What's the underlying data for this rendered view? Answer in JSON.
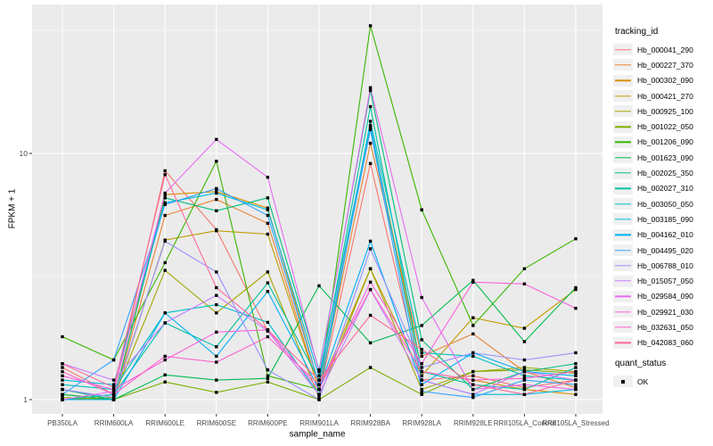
{
  "chart_data": {
    "type": "line",
    "title": "",
    "xlabel": "sample_name",
    "ylabel": "FPKM + 1",
    "y_scale": "log10",
    "y_ticks": [
      1,
      10
    ],
    "y_minor_gridlines": [
      3.162,
      31.62
    ],
    "ylim": [
      0.92,
      40
    ],
    "grid": "on",
    "legend_position": "right",
    "panel_bg": "#ebebeb",
    "grid_color": "#ffffff",
    "tick_color": "#333333",
    "axis_text_color": "#4d4d4d",
    "point_shape": "filled-square",
    "point_color": "#000000",
    "categories": [
      "PB350LA",
      "RRIM600LA",
      "RRIM600LE",
      "RRIM600SE",
      "RRIM600PE",
      "RRIM901LA",
      "RRIM928BA",
      "RRIM928LA",
      "RRIM928LE",
      "RRII105LA_Control",
      "RRII105LA_Stressed"
    ],
    "series": [
      {
        "name": "Hb_000041_290",
        "color": "#F8766D",
        "values": [
          1.35,
          1.05,
          8.5,
          4.9,
          1.9,
          1.05,
          9.1,
          1.2,
          1.25,
          1.12,
          1.2
        ]
      },
      {
        "name": "Hb_000227_370",
        "color": "#EA8331",
        "values": [
          1.0,
          1.0,
          5.6,
          6.5,
          5.2,
          1.1,
          11.0,
          1.5,
          1.85,
          1.3,
          1.12
        ]
      },
      {
        "name": "Hb_000302_090",
        "color": "#D89000",
        "values": [
          1.1,
          1.0,
          6.8,
          7.0,
          6.0,
          1.15,
          12.8,
          1.3,
          1.2,
          1.1,
          1.05
        ]
      },
      {
        "name": "Hb_000421_270",
        "color": "#C09B00",
        "values": [
          1.05,
          1.0,
          4.45,
          4.85,
          4.7,
          1.1,
          3.4,
          1.25,
          2.15,
          1.95,
          2.8
        ]
      },
      {
        "name": "Hb_000925_100",
        "color": "#A3A500",
        "values": [
          1.0,
          1.02,
          3.35,
          2.25,
          3.3,
          1.02,
          3.4,
          1.1,
          1.3,
          1.35,
          1.3
        ]
      },
      {
        "name": "Hb_001022_050",
        "color": "#7CAE00",
        "values": [
          1.02,
          1.0,
          1.18,
          1.07,
          1.18,
          1.0,
          1.35,
          1.05,
          1.3,
          1.32,
          1.28
        ]
      },
      {
        "name": "Hb_001206_090",
        "color": "#39B600",
        "values": [
          1.8,
          1.45,
          3.6,
          9.3,
          1.25,
          1.1,
          33.0,
          5.9,
          2.0,
          3.4,
          4.5
        ]
      },
      {
        "name": "Hb_001623_090",
        "color": "#00BB4E",
        "values": [
          1.05,
          1.0,
          1.26,
          1.2,
          1.22,
          2.9,
          1.7,
          2.0,
          3.05,
          1.72,
          2.85
        ]
      },
      {
        "name": "Hb_002025_350",
        "color": "#00BF7D",
        "values": [
          1.1,
          1.0,
          6.6,
          5.85,
          6.6,
          1.32,
          18.0,
          1.75,
          1.1,
          1.3,
          1.4
        ]
      },
      {
        "name": "Hb_002027_310",
        "color": "#00C1A3",
        "values": [
          1.0,
          1.05,
          2.05,
          1.64,
          2.98,
          1.2,
          15.5,
          1.3,
          1.15,
          1.1,
          1.35
        ]
      },
      {
        "name": "Hb_003050_050",
        "color": "#00BFC4",
        "values": [
          1.15,
          1.1,
          2.25,
          2.43,
          2.06,
          1.05,
          13.5,
          1.55,
          1.5,
          1.25,
          1.2
        ]
      },
      {
        "name": "Hb_003185_090",
        "color": "#00BAE0",
        "values": [
          1.2,
          1.15,
          6.3,
          6.9,
          5.9,
          1.25,
          13.0,
          1.2,
          1.05,
          1.05,
          1.1
        ]
      },
      {
        "name": "Hb_004162_010",
        "color": "#00B0F6",
        "values": [
          1.0,
          1.0,
          2.25,
          1.5,
          2.75,
          1.1,
          4.4,
          1.15,
          1.55,
          1.3,
          1.25
        ]
      },
      {
        "name": "Hb_004495_020",
        "color": "#35A2FF",
        "values": [
          1.05,
          1.45,
          6.2,
          7.2,
          5.6,
          1.15,
          12.5,
          1.08,
          1.02,
          1.2,
          1.15
        ]
      },
      {
        "name": "Hb_006788_010",
        "color": "#9590FF",
        "values": [
          1.1,
          1.02,
          4.4,
          3.3,
          1.32,
          1.0,
          4.1,
          1.35,
          1.55,
          1.45,
          1.55
        ]
      },
      {
        "name": "Hb_015057_050",
        "color": "#C77CFF",
        "values": [
          1.4,
          1.2,
          2.05,
          2.65,
          1.9,
          1.05,
          2.8,
          1.2,
          1.05,
          1.3,
          1.2
        ]
      },
      {
        "name": "Hb_029584_090",
        "color": "#E76BF3",
        "values": [
          1.0,
          1.08,
          6.9,
          11.4,
          8.0,
          1.3,
          18.5,
          2.6,
          1.1,
          1.15,
          1.1
        ]
      },
      {
        "name": "Hb_029921_030",
        "color": "#FA62DB",
        "values": [
          1.25,
          1.1,
          1.45,
          1.88,
          1.92,
          1.1,
          3.0,
          1.4,
          3.0,
          2.95,
          2.35
        ]
      },
      {
        "name": "Hb_032631_050",
        "color": "#FF61CC",
        "values": [
          1.3,
          1.05,
          1.5,
          1.42,
          1.8,
          1.15,
          2.8,
          1.3,
          1.2,
          1.22,
          1.3
        ]
      },
      {
        "name": "Hb_042083_060",
        "color": "#FF6A98",
        "values": [
          1.4,
          1.12,
          8.2,
          2.85,
          1.92,
          1.2,
          2.2,
          1.6,
          1.15,
          1.05,
          1.2
        ]
      }
    ]
  },
  "legend": {
    "tracking_title": "tracking_id",
    "quant_title": "quant_status",
    "quant_items": [
      {
        "label": "OK"
      }
    ]
  },
  "axes": {
    "y_title": "FPKM + 1",
    "x_title": "sample_name"
  }
}
